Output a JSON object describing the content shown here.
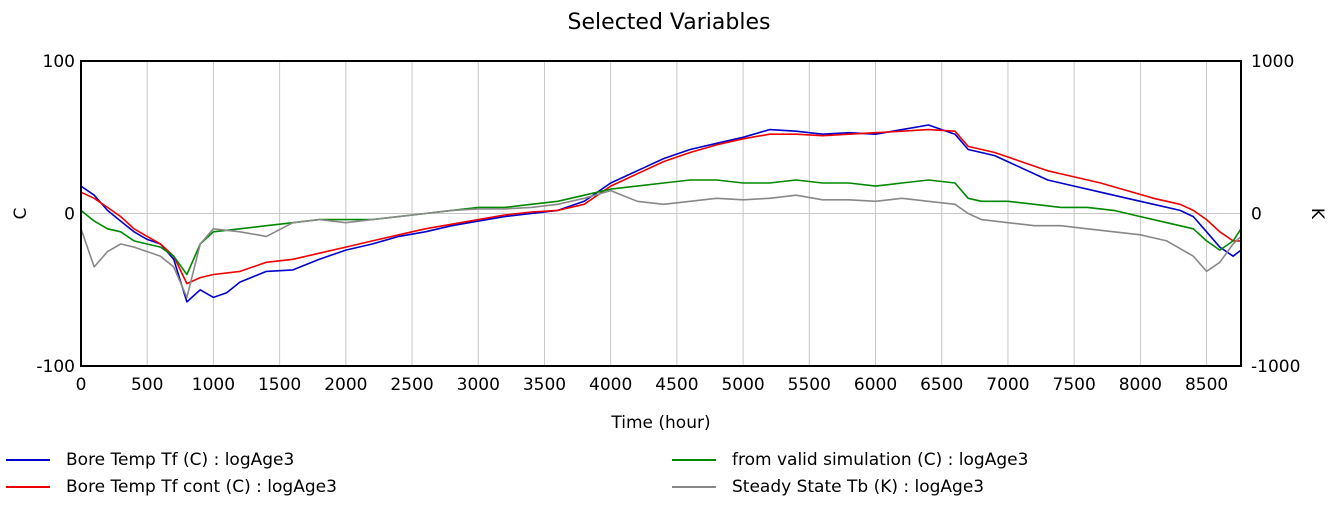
{
  "chart_data": {
    "type": "line",
    "title": "Selected Variables",
    "xlabel": "Time (hour)",
    "ylabel_left": "C",
    "ylabel_right": "K",
    "xlim": [
      0,
      8760
    ],
    "ylim_left": [
      -100,
      100
    ],
    "ylim_right": [
      -1000,
      1000
    ],
    "x_ticks": [
      0,
      500,
      1000,
      1500,
      2000,
      2500,
      3000,
      3500,
      4000,
      4500,
      5000,
      5500,
      6000,
      6500,
      7000,
      7500,
      8000,
      8500
    ],
    "y_ticks_left": [
      -100,
      0,
      100
    ],
    "y_ticks_right": [
      -1000,
      0,
      1000
    ],
    "grid": "vertical",
    "legend_position": "bottom",
    "series": [
      {
        "name": "Bore Temp Tf (C) : logAge3",
        "color": "#0000cc",
        "axis": "left",
        "x": [
          0,
          100,
          200,
          300,
          400,
          500,
          600,
          700,
          800,
          900,
          1000,
          1100,
          1200,
          1400,
          1600,
          1800,
          2000,
          2200,
          2400,
          2600,
          2800,
          3000,
          3200,
          3400,
          3600,
          3800,
          4000,
          4200,
          4400,
          4600,
          4800,
          5000,
          5200,
          5400,
          5600,
          5800,
          6000,
          6200,
          6400,
          6600,
          6700,
          6900,
          7100,
          7300,
          7500,
          7700,
          7900,
          8100,
          8300,
          8400,
          8500,
          8600,
          8700,
          8760
        ],
        "y": [
          18,
          12,
          2,
          -5,
          -12,
          -17,
          -20,
          -30,
          -58,
          -50,
          -55,
          -52,
          -45,
          -38,
          -37,
          -30,
          -24,
          -20,
          -15,
          -12,
          -8,
          -5,
          -2,
          0,
          2,
          8,
          20,
          28,
          36,
          42,
          46,
          50,
          55,
          54,
          52,
          53,
          52,
          55,
          58,
          52,
          42,
          38,
          30,
          22,
          18,
          14,
          10,
          6,
          2,
          -2,
          -12,
          -22,
          -28,
          -24
        ]
      },
      {
        "name": "Bore Temp Tf cont (C) : logAge3",
        "color": "#ee0000",
        "axis": "left",
        "x": [
          0,
          100,
          200,
          300,
          400,
          500,
          600,
          700,
          800,
          900,
          1000,
          1200,
          1400,
          1600,
          1800,
          2000,
          2200,
          2400,
          2600,
          2800,
          3000,
          3200,
          3400,
          3600,
          3800,
          4000,
          4200,
          4400,
          4600,
          4800,
          5000,
          5200,
          5400,
          5600,
          5800,
          6000,
          6200,
          6400,
          6600,
          6700,
          6900,
          7100,
          7300,
          7500,
          7700,
          7900,
          8100,
          8300,
          8400,
          8500,
          8600,
          8700,
          8760
        ],
        "y": [
          14,
          10,
          4,
          -2,
          -10,
          -15,
          -20,
          -28,
          -46,
          -42,
          -40,
          -38,
          -32,
          -30,
          -26,
          -22,
          -18,
          -14,
          -10,
          -7,
          -4,
          -1,
          1,
          2,
          6,
          18,
          26,
          34,
          40,
          45,
          49,
          52,
          52,
          51,
          52,
          53,
          54,
          55,
          54,
          44,
          40,
          34,
          28,
          24,
          20,
          15,
          10,
          6,
          2,
          -4,
          -12,
          -18,
          -18
        ]
      },
      {
        "name": "from valid simulation (C) : logAge3",
        "color": "#008800",
        "axis": "left",
        "x": [
          0,
          100,
          200,
          300,
          400,
          500,
          600,
          700,
          800,
          900,
          1000,
          1200,
          1400,
          1600,
          1800,
          2000,
          2200,
          2400,
          2600,
          2800,
          3000,
          3200,
          3400,
          3600,
          3800,
          4000,
          4200,
          4400,
          4600,
          4800,
          5000,
          5200,
          5400,
          5600,
          5800,
          6000,
          6200,
          6400,
          6600,
          6700,
          6800,
          7000,
          7200,
          7400,
          7600,
          7800,
          8000,
          8200,
          8400,
          8500,
          8600,
          8700,
          8760
        ],
        "y": [
          2,
          -5,
          -10,
          -12,
          -18,
          -20,
          -22,
          -28,
          -40,
          -20,
          -12,
          -10,
          -8,
          -6,
          -4,
          -4,
          -4,
          -2,
          0,
          2,
          4,
          4,
          6,
          8,
          12,
          16,
          18,
          20,
          22,
          22,
          20,
          20,
          22,
          20,
          20,
          18,
          20,
          22,
          20,
          10,
          8,
          8,
          6,
          4,
          4,
          2,
          -2,
          -6,
          -10,
          -18,
          -24,
          -18,
          -10
        ]
      },
      {
        "name": "Steady State Tb (K) : logAge3",
        "color": "#888888",
        "axis": "right",
        "x": [
          0,
          100,
          200,
          300,
          400,
          500,
          600,
          700,
          800,
          900,
          1000,
          1200,
          1400,
          1600,
          1800,
          2000,
          2200,
          2400,
          2600,
          2800,
          3000,
          3200,
          3400,
          3600,
          3800,
          4000,
          4200,
          4400,
          4600,
          4800,
          5000,
          5200,
          5400,
          5600,
          5800,
          6000,
          6200,
          6400,
          6600,
          6700,
          6800,
          7000,
          7200,
          7400,
          7600,
          7800,
          8000,
          8200,
          8400,
          8500,
          8600,
          8700,
          8760
        ],
        "y": [
          -100,
          -350,
          -250,
          -200,
          -220,
          -250,
          -280,
          -350,
          -550,
          -200,
          -100,
          -120,
          -150,
          -60,
          -40,
          -60,
          -40,
          -20,
          0,
          20,
          30,
          30,
          40,
          60,
          100,
          150,
          80,
          60,
          80,
          100,
          90,
          100,
          120,
          90,
          90,
          80,
          100,
          80,
          60,
          0,
          -40,
          -60,
          -80,
          -80,
          -100,
          -120,
          -140,
          -180,
          -280,
          -380,
          -320,
          -200,
          -150
        ]
      }
    ]
  }
}
